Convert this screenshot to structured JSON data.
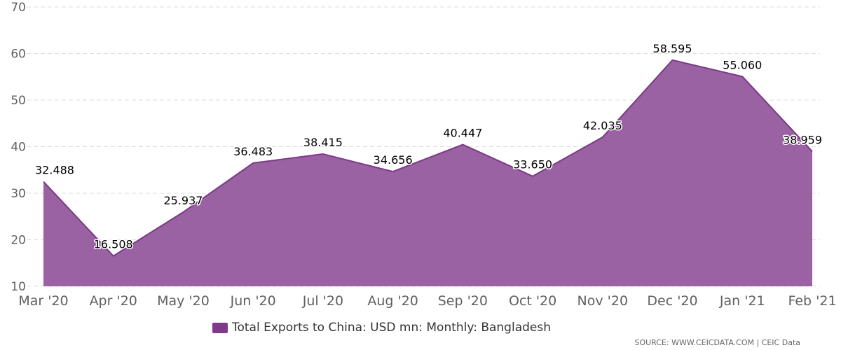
{
  "chart_data": {
    "type": "area",
    "categories": [
      "Mar '20",
      "Apr '20",
      "May '20",
      "Jun '20",
      "Jul '20",
      "Aug '20",
      "Sep '20",
      "Oct '20",
      "Nov '20",
      "Dec '20",
      "Jan '21",
      "Feb '21"
    ],
    "series": [
      {
        "name": "Total Exports to China: USD mn: Monthly: Bangladesh",
        "values": [
          32.488,
          16.508,
          25.937,
          36.483,
          38.415,
          34.656,
          40.447,
          33.65,
          42.035,
          58.595,
          55.06,
          38.959
        ],
        "labels": [
          "32.488",
          "16.508",
          "25.937",
          "36.483",
          "38.415",
          "34.656",
          "40.447",
          "33.650",
          "42.035",
          "58.595",
          "55.060",
          "38.959"
        ]
      }
    ],
    "y_ticks": [
      10,
      20,
      30,
      40,
      50,
      60,
      70
    ],
    "ylim": [
      10,
      70
    ],
    "grid": true,
    "legend_position": "bottom-center",
    "colors": {
      "fill": "#9a62a2",
      "line": "#7a3a86",
      "swatch": "#7f3a8a",
      "grid": "#dddddd"
    }
  },
  "legend": {
    "label": "Total Exports to China: USD mn: Monthly: Bangladesh"
  },
  "source": "SOURCE: WWW.CEICDATA.COM | CEIC Data"
}
